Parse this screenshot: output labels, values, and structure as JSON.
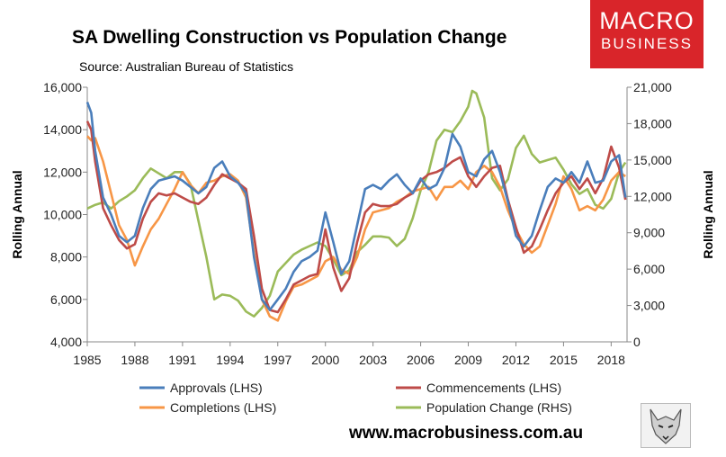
{
  "header": {
    "title": "SA Dwelling Construction vs Population Change",
    "subtitle": "Source: Australian Bureau of Statistics"
  },
  "branding": {
    "logo_line1": "MACRO",
    "logo_line2": "BUSINESS",
    "url": "www.macrobusiness.com.au"
  },
  "chart_data": {
    "type": "line",
    "title": "SA Dwelling Construction vs Population Change",
    "ylabel_left": "Rolling Annual",
    "ylabel_right": "Rolling Annual",
    "xlim": [
      1985,
      2019
    ],
    "ylim_left": [
      4000,
      16000
    ],
    "ylim_right": [
      0,
      21000
    ],
    "x_ticks": [
      1985,
      1988,
      1991,
      1994,
      1997,
      2000,
      2003,
      2006,
      2009,
      2012,
      2015,
      2018
    ],
    "x_tick_labels": [
      "1985",
      "1988",
      "1991",
      "1994",
      "1997",
      "2000",
      "2003",
      "2006",
      "2009",
      "2012",
      "2015",
      "2018"
    ],
    "y_left_ticks": [
      4000,
      6000,
      8000,
      10000,
      12000,
      14000,
      16000
    ],
    "y_left_tick_labels": [
      "4,000",
      "6,000",
      "8,000",
      "10,000",
      "12,000",
      "14,000",
      "16,000"
    ],
    "y_right_ticks": [
      0,
      3000,
      6000,
      9000,
      12000,
      15000,
      18000,
      21000
    ],
    "y_right_tick_labels": [
      "0",
      "3,000",
      "6,000",
      "9,000",
      "12,000",
      "15,000",
      "18,000",
      "21,000"
    ],
    "grid": false,
    "legend_position": "bottom",
    "series": [
      {
        "name": "Approvals (LHS)",
        "axis": "left",
        "color": "#4a7ebb",
        "x": [
          1985,
          1985.25,
          1985.5,
          1986,
          1986.5,
          1987,
          1987.5,
          1988,
          1988.5,
          1989,
          1989.5,
          1990,
          1990.5,
          1991,
          1991.5,
          1992,
          1992.5,
          1993,
          1993.5,
          1994,
          1994.5,
          1995,
          1995.5,
          1996,
          1996.5,
          1997,
          1997.5,
          1998,
          1998.5,
          1999,
          1999.5,
          2000,
          2000.5,
          2001,
          2001.5,
          2002,
          2002.5,
          2003,
          2003.5,
          2004,
          2004.5,
          2005,
          2005.5,
          2006,
          2006.5,
          2007,
          2007.5,
          2008,
          2008.5,
          2009,
          2009.5,
          2010,
          2010.5,
          2011,
          2011.5,
          2012,
          2012.5,
          2013,
          2013.5,
          2014,
          2014.5,
          2015,
          2015.5,
          2016,
          2016.5,
          2017,
          2017.5,
          2018,
          2018.5,
          2018.9
        ],
        "values": [
          15300,
          14800,
          13000,
          10800,
          10000,
          9000,
          8700,
          9000,
          10300,
          11200,
          11600,
          11700,
          11800,
          11600,
          11300,
          11000,
          11300,
          12200,
          12500,
          11800,
          11500,
          11000,
          8000,
          6000,
          5500,
          6000,
          6500,
          7300,
          7800,
          8000,
          8300,
          10100,
          8700,
          7200,
          7800,
          9500,
          11200,
          11400,
          11200,
          11600,
          11900,
          11400,
          11000,
          11700,
          11200,
          11400,
          12200,
          13800,
          13200,
          12000,
          11800,
          12600,
          13000,
          12000,
          10600,
          9000,
          8500,
          9000,
          10200,
          11300,
          11700,
          11500,
          12000,
          11500,
          12500,
          11500,
          11600,
          12500,
          12800,
          10800
        ]
      },
      {
        "name": "Commencements (LHS)",
        "axis": "left",
        "color": "#be4b48",
        "x": [
          1985,
          1985.25,
          1985.5,
          1986,
          1986.5,
          1987,
          1987.5,
          1988,
          1988.5,
          1989,
          1989.5,
          1990,
          1990.5,
          1991,
          1991.5,
          1992,
          1992.5,
          1993,
          1993.5,
          1994,
          1994.5,
          1995,
          1995.5,
          1996,
          1996.5,
          1997,
          1997.5,
          1998,
          1998.5,
          1999,
          1999.5,
          2000,
          2000.5,
          2001,
          2001.5,
          2002,
          2002.5,
          2003,
          2003.5,
          2004,
          2004.5,
          2005,
          2005.5,
          2006,
          2006.5,
          2007,
          2007.5,
          2008,
          2008.5,
          2009,
          2009.5,
          2010,
          2010.5,
          2011,
          2011.5,
          2012,
          2012.5,
          2013,
          2013.5,
          2014,
          2014.5,
          2015,
          2015.5,
          2016,
          2016.5,
          2017,
          2017.5,
          2018,
          2018.5,
          2018.9
        ],
        "values": [
          14400,
          14000,
          12500,
          10300,
          9500,
          8800,
          8400,
          8600,
          9800,
          10600,
          11000,
          10900,
          11000,
          10800,
          10600,
          10500,
          10800,
          11400,
          11900,
          11700,
          11500,
          11200,
          9000,
          6500,
          5500,
          5400,
          6000,
          6700,
          6900,
          7100,
          7200,
          9300,
          7500,
          6400,
          7000,
          8700,
          10100,
          10500,
          10400,
          10400,
          10500,
          10800,
          11000,
          11600,
          11900,
          12000,
          12200,
          12500,
          12700,
          11800,
          11300,
          11800,
          12200,
          12300,
          10700,
          9400,
          8200,
          8500,
          9300,
          10200,
          11000,
          11500,
          11800,
          11200,
          11700,
          11000,
          11700,
          13200,
          12200,
          10700
        ]
      },
      {
        "name": "Completions (LHS)",
        "axis": "left",
        "color": "#f79646",
        "x": [
          1985,
          1985.25,
          1985.5,
          1986,
          1986.5,
          1987,
          1987.5,
          1988,
          1988.5,
          1989,
          1989.5,
          1990,
          1990.5,
          1991,
          1991.5,
          1992,
          1992.5,
          1993,
          1993.5,
          1994,
          1994.5,
          1995,
          1995.5,
          1996,
          1996.5,
          1997,
          1997.5,
          1998,
          1998.5,
          1999,
          1999.5,
          2000,
          2000.5,
          2001,
          2001.5,
          2002,
          2002.5,
          2003,
          2003.5,
          2004,
          2004.5,
          2005,
          2005.5,
          2006,
          2006.5,
          2007,
          2007.5,
          2008,
          2008.5,
          2009,
          2009.5,
          2010,
          2010.5,
          2011,
          2011.5,
          2012,
          2012.5,
          2013,
          2013.5,
          2014,
          2014.5,
          2015,
          2015.5,
          2016,
          2016.5,
          2017,
          2017.5,
          2018,
          2018.5,
          2018.9
        ],
        "values": [
          13700,
          13500,
          13600,
          12500,
          11000,
          9500,
          8800,
          7600,
          8500,
          9300,
          9800,
          10500,
          11200,
          12000,
          11400,
          11000,
          11500,
          11600,
          11800,
          11900,
          11600,
          10800,
          8200,
          6000,
          5200,
          5000,
          5900,
          6600,
          6700,
          6900,
          7100,
          7800,
          8000,
          7400,
          7200,
          8000,
          9300,
          10100,
          10200,
          10300,
          10600,
          10800,
          11100,
          11200,
          11300,
          10700,
          11300,
          11300,
          11600,
          11200,
          12000,
          12300,
          12000,
          11300,
          10200,
          9300,
          8600,
          8200,
          8500,
          9500,
          10500,
          11800,
          11200,
          10200,
          10400,
          10200,
          10700,
          11600,
          12000,
          11800
        ]
      },
      {
        "name": "Population Change (RHS)",
        "axis": "right",
        "color": "#9bbb59",
        "x": [
          1985,
          1985.5,
          1986,
          1986.5,
          1987,
          1987.5,
          1988,
          1988.5,
          1989,
          1989.5,
          1990,
          1990.5,
          1991,
          1991.5,
          1992,
          1992.5,
          1993,
          1993.5,
          1994,
          1994.5,
          1995,
          1995.5,
          1996,
          1996.5,
          1997,
          1997.5,
          1998,
          1998.5,
          1999,
          1999.5,
          2000,
          2000.5,
          2001,
          2001.5,
          2002,
          2002.5,
          2003,
          2003.5,
          2004,
          2004.5,
          2005,
          2005.5,
          2006,
          2006.5,
          2007,
          2007.5,
          2008,
          2008.5,
          2009,
          2009.25,
          2009.5,
          2010,
          2010.5,
          2011,
          2011.5,
          2012,
          2012.5,
          2013,
          2013.5,
          2014,
          2014.5,
          2015,
          2015.5,
          2016,
          2016.5,
          2017,
          2017.5,
          2018,
          2018.5,
          2018.9
        ],
        "values": [
          11000,
          11300,
          11500,
          11000,
          11600,
          12000,
          12500,
          13500,
          14300,
          13900,
          13500,
          14000,
          14000,
          13000,
          10000,
          7000,
          3500,
          3900,
          3800,
          3400,
          2500,
          2100,
          2800,
          3800,
          5800,
          6500,
          7200,
          7600,
          7900,
          8200,
          7900,
          6800,
          5500,
          5900,
          7400,
          8000,
          8700,
          8700,
          8600,
          7900,
          8500,
          10200,
          12500,
          14000,
          16600,
          17500,
          17300,
          18200,
          19400,
          20700,
          20500,
          18500,
          13500,
          12500,
          13400,
          16000,
          17000,
          15500,
          14800,
          15000,
          15200,
          14200,
          13000,
          12200,
          12600,
          11300,
          11000,
          11800,
          14000,
          14800
        ]
      }
    ]
  }
}
